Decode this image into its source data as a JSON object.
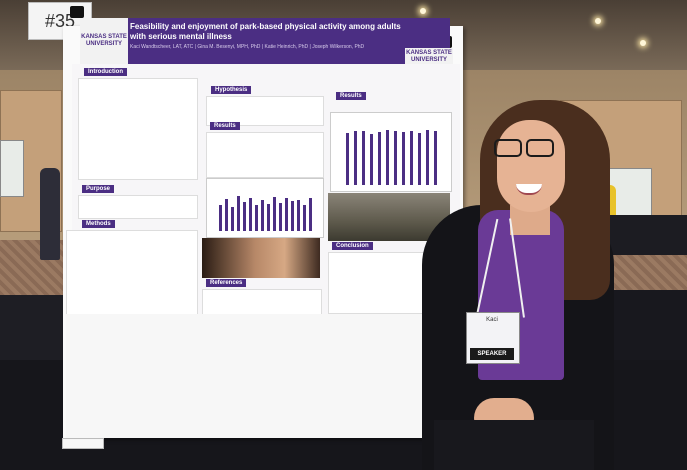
{
  "booth": {
    "number": "#35"
  },
  "poster": {
    "university_logo": "KANSAS STATE UNIVERSITY",
    "title": "Feasibility and enjoyment of park-based physical activity among adults with serious mental illness",
    "authors": "Kaci Wandtscheer, LAT, ATC | Gina M. Besenyi, MPH, PhD | Katie Heinrich, PhD | Joseph Wilkerson, PhD",
    "sections": {
      "introduction": "Introduction",
      "purpose": "Purpose",
      "methods": "Methods",
      "hypothesis": "Hypothesis",
      "results_left": "Results",
      "results_right": "Results",
      "conclusion": "Conclusion",
      "references": "References"
    },
    "chart_top_values": [
      82,
      84,
      85,
      80,
      83,
      86,
      84,
      83,
      85,
      82,
      86,
      84
    ],
    "chart_mid_values": [
      60,
      72,
      55,
      80,
      66,
      74,
      58,
      70,
      62,
      78,
      64,
      76,
      68,
      70,
      60,
      74
    ]
  },
  "presenter": {
    "badge_name": "Kaci",
    "badge_role": "SPEAKER"
  },
  "colors": {
    "brand_purple": "#4b2e83",
    "shirt_purple": "#6a3a96"
  }
}
